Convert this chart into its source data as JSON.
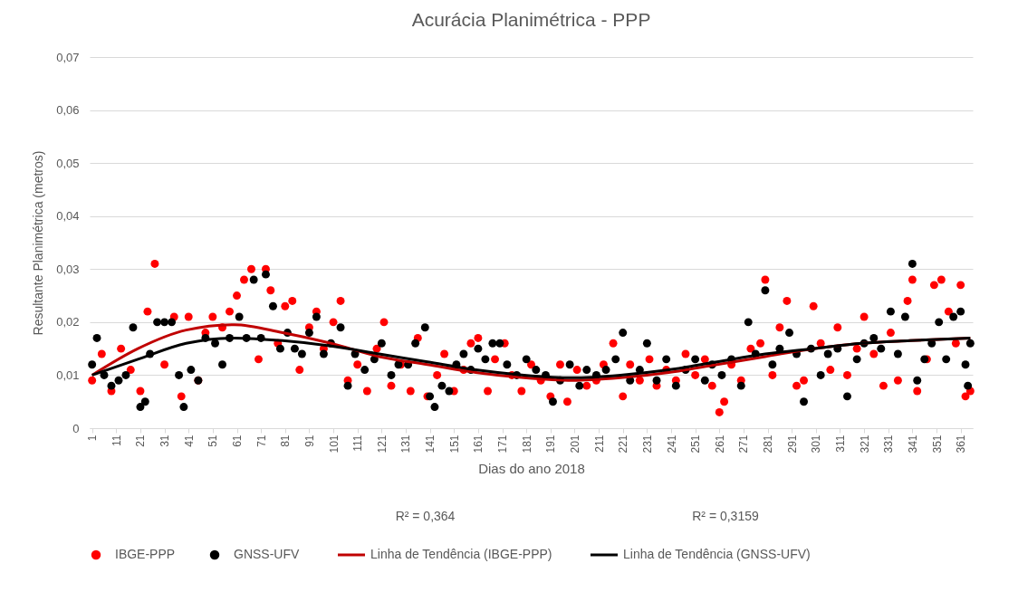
{
  "chart_data": {
    "type": "scatter",
    "title": "Acurácia Planimétrica - PPP",
    "xlabel": "Dias do ano 2018",
    "ylabel": "Resultante Planimétrica (metros)",
    "xlim": [
      0,
      366
    ],
    "xticks": [
      1,
      11,
      21,
      31,
      41,
      51,
      61,
      71,
      81,
      91,
      101,
      111,
      121,
      131,
      141,
      151,
      161,
      171,
      181,
      191,
      201,
      211,
      221,
      231,
      241,
      251,
      261,
      271,
      281,
      291,
      301,
      311,
      321,
      331,
      341,
      351,
      361
    ],
    "ylim": [
      0,
      0.07
    ],
    "yticks": [
      0,
      {
        "value": 0.01,
        "label": "0,01"
      },
      {
        "value": 0.02,
        "label": "0,02"
      },
      {
        "value": 0.03,
        "label": "0,03"
      },
      {
        "value": 0.04,
        "label": "0,04"
      },
      {
        "value": 0.05,
        "label": "0,05"
      },
      {
        "value": 0.06,
        "label": "0,06"
      },
      {
        "value": 0.07,
        "label": "0,07"
      }
    ],
    "grid": "y",
    "legend": "bottom",
    "annotations": [
      "R² = 0,364",
      "R² = 0,3159"
    ],
    "series": [
      {
        "name": "IBGE-PPP",
        "marker": "circle",
        "color": "#ff0000",
        "x": [
          1,
          5,
          9,
          13,
          17,
          21,
          24,
          27,
          31,
          35,
          38,
          41,
          45,
          48,
          51,
          55,
          58,
          61,
          64,
          67,
          70,
          73,
          75,
          78,
          81,
          84,
          87,
          91,
          94,
          97,
          101,
          104,
          107,
          111,
          115,
          119,
          122,
          125,
          129,
          133,
          136,
          140,
          144,
          147,
          151,
          155,
          158,
          161,
          165,
          168,
          172,
          175,
          179,
          183,
          187,
          191,
          195,
          198,
          202,
          206,
          210,
          213,
          217,
          221,
          224,
          228,
          232,
          235,
          239,
          243,
          247,
          251,
          255,
          258,
          261,
          263,
          266,
          270,
          274,
          278,
          280,
          283,
          286,
          289,
          293,
          296,
          300,
          303,
          307,
          310,
          314,
          318,
          321,
          325,
          329,
          332,
          335,
          339,
          341,
          343,
          347,
          350,
          353,
          356,
          359,
          361,
          363,
          365
        ],
        "values": [
          0.009,
          0.014,
          0.007,
          0.015,
          0.011,
          0.007,
          0.022,
          0.031,
          0.012,
          0.021,
          0.006,
          0.021,
          0.009,
          0.018,
          0.021,
          0.019,
          0.022,
          0.025,
          0.028,
          0.03,
          0.013,
          0.03,
          0.026,
          0.016,
          0.023,
          0.024,
          0.011,
          0.019,
          0.022,
          0.015,
          0.02,
          0.024,
          0.009,
          0.012,
          0.007,
          0.015,
          0.02,
          0.008,
          0.012,
          0.007,
          0.017,
          0.006,
          0.01,
          0.014,
          0.007,
          0.011,
          0.016,
          0.017,
          0.007,
          0.013,
          0.016,
          0.01,
          0.007,
          0.012,
          0.009,
          0.006,
          0.012,
          0.005,
          0.011,
          0.008,
          0.009,
          0.012,
          0.016,
          0.006,
          0.012,
          0.009,
          0.013,
          0.008,
          0.011,
          0.009,
          0.014,
          0.01,
          0.013,
          0.008,
          0.003,
          0.005,
          0.012,
          0.009,
          0.015,
          0.016,
          0.028,
          0.01,
          0.019,
          0.024,
          0.008,
          0.009,
          0.023,
          0.016,
          0.011,
          0.019,
          0.01,
          0.015,
          0.021,
          0.014,
          0.008,
          0.018,
          0.009,
          0.024,
          0.028,
          0.007,
          0.013,
          0.027,
          0.028,
          0.022,
          0.016,
          0.027,
          0.006,
          0.007
        ]
      },
      {
        "name": "GNSS-UFV",
        "marker": "circle",
        "color": "#000000",
        "x": [
          1,
          3,
          6,
          9,
          12,
          15,
          18,
          21,
          23,
          25,
          28,
          31,
          34,
          37,
          39,
          42,
          45,
          48,
          52,
          55,
          58,
          62,
          65,
          68,
          71,
          73,
          76,
          79,
          82,
          85,
          88,
          91,
          94,
          97,
          100,
          104,
          107,
          110,
          114,
          118,
          121,
          125,
          128,
          132,
          135,
          139,
          141,
          143,
          146,
          149,
          152,
          155,
          158,
          161,
          164,
          167,
          170,
          173,
          177,
          181,
          185,
          189,
          192,
          195,
          199,
          203,
          206,
          210,
          214,
          218,
          221,
          224,
          228,
          231,
          235,
          239,
          243,
          247,
          251,
          255,
          258,
          262,
          266,
          270,
          273,
          276,
          280,
          283,
          286,
          290,
          293,
          296,
          299,
          303,
          306,
          310,
          314,
          318,
          321,
          325,
          328,
          332,
          335,
          338,
          341,
          343,
          346,
          349,
          352,
          355,
          358,
          361,
          363,
          364,
          365
        ],
        "values": [
          0.012,
          0.017,
          0.01,
          0.008,
          0.009,
          0.01,
          0.019,
          0.004,
          0.005,
          0.014,
          0.02,
          0.02,
          0.02,
          0.01,
          0.004,
          0.011,
          0.009,
          0.017,
          0.016,
          0.012,
          0.017,
          0.021,
          0.017,
          0.028,
          0.017,
          0.029,
          0.023,
          0.015,
          0.018,
          0.015,
          0.014,
          0.018,
          0.021,
          0.014,
          0.016,
          0.019,
          0.008,
          0.014,
          0.011,
          0.013,
          0.016,
          0.01,
          0.012,
          0.012,
          0.016,
          0.019,
          0.006,
          0.004,
          0.008,
          0.007,
          0.012,
          0.014,
          0.011,
          0.015,
          0.013,
          0.016,
          0.016,
          0.012,
          0.01,
          0.013,
          0.011,
          0.01,
          0.005,
          0.009,
          0.012,
          0.008,
          0.011,
          0.01,
          0.011,
          0.013,
          0.018,
          0.009,
          0.011,
          0.016,
          0.009,
          0.013,
          0.008,
          0.011,
          0.013,
          0.009,
          0.012,
          0.01,
          0.013,
          0.008,
          0.02,
          0.014,
          0.026,
          0.012,
          0.015,
          0.018,
          0.014,
          0.005,
          0.015,
          0.01,
          0.014,
          0.015,
          0.006,
          0.013,
          0.016,
          0.017,
          0.015,
          0.022,
          0.014,
          0.021,
          0.031,
          0.009,
          0.013,
          0.016,
          0.02,
          0.013,
          0.021,
          0.022,
          0.012,
          0.008,
          0.016
        ]
      },
      {
        "name": "Linha de Tendência (IBGE-PPP)",
        "type": "line",
        "marker": "none",
        "color": "#c00000",
        "x": [
          1,
          20,
          40,
          60,
          80,
          100,
          120,
          140,
          160,
          180,
          200,
          220,
          240,
          260,
          280,
          300,
          320,
          340,
          365
        ],
        "values": [
          0.01,
          0.015,
          0.0185,
          0.0195,
          0.018,
          0.016,
          0.0135,
          0.012,
          0.0105,
          0.0095,
          0.009,
          0.0095,
          0.0105,
          0.012,
          0.0135,
          0.015,
          0.016,
          0.0165,
          0.017
        ]
      },
      {
        "name": "Linha de Tendência (GNSS-UFV)",
        "type": "line",
        "marker": "none",
        "color": "#000000",
        "x": [
          1,
          20,
          40,
          60,
          80,
          100,
          120,
          140,
          160,
          180,
          200,
          220,
          240,
          260,
          280,
          300,
          320,
          340,
          365
        ],
        "values": [
          0.01,
          0.013,
          0.016,
          0.017,
          0.0165,
          0.0155,
          0.014,
          0.0125,
          0.011,
          0.01,
          0.0095,
          0.01,
          0.011,
          0.0125,
          0.014,
          0.015,
          0.016,
          0.0165,
          0.017
        ]
      }
    ]
  }
}
